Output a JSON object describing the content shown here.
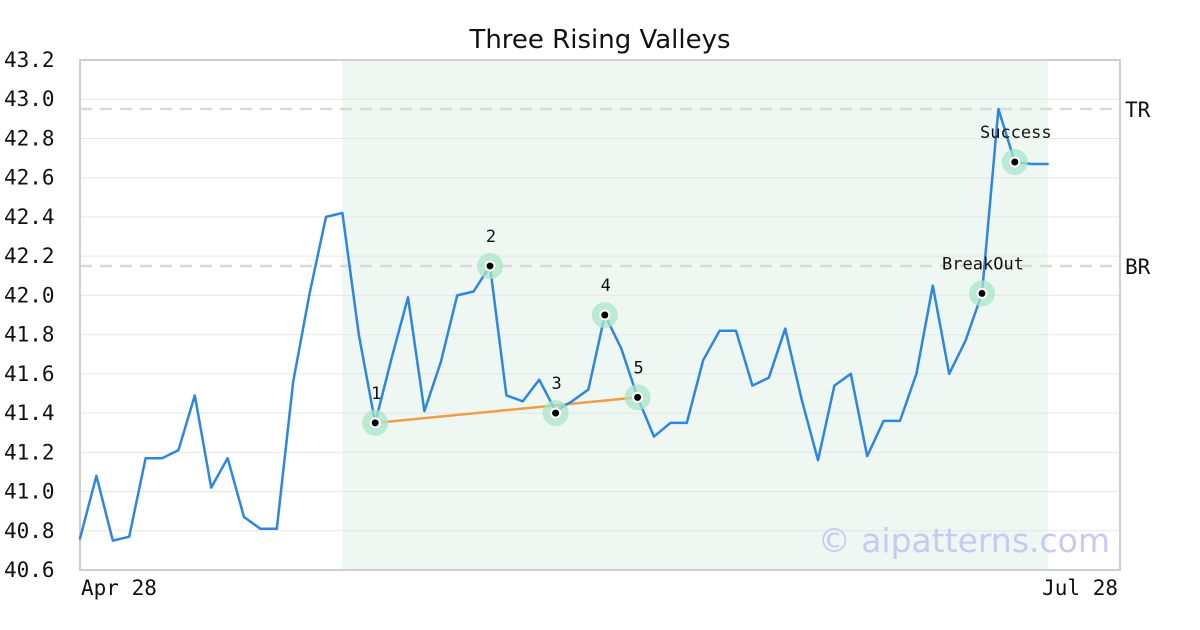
{
  "chart_data": {
    "type": "line",
    "title": "Three Rising Valleys",
    "xlabel": "",
    "ylabel": "",
    "x_tick_labels": [
      "Apr 28",
      "Jul 28"
    ],
    "ylim": [
      40.6,
      43.2
    ],
    "y_ticks": [
      "40.6",
      "40.8",
      "41.0",
      "41.2",
      "41.4",
      "41.6",
      "41.8",
      "42.0",
      "42.2",
      "42.4",
      "42.6",
      "42.8",
      "43.0",
      "43.2"
    ],
    "grid": true,
    "series": [
      {
        "color": "#2e86de",
        "values": [
          40.76,
          41.08,
          40.75,
          40.77,
          41.17,
          41.17,
          41.21,
          41.49,
          41.02,
          41.17,
          40.87,
          40.81,
          40.81,
          41.56,
          42.01,
          42.4,
          42.42,
          41.8,
          41.35,
          41.68,
          41.99,
          41.41,
          41.66,
          42.0,
          42.02,
          42.15,
          41.49,
          41.46,
          41.57,
          41.41,
          41.46,
          41.52,
          41.9,
          41.73,
          41.48,
          41.28,
          41.35,
          41.35,
          41.67,
          41.82,
          41.82,
          41.54,
          41.58,
          41.83,
          41.47,
          41.16,
          41.54,
          41.6,
          41.18,
          41.36,
          41.36,
          41.6,
          42.05,
          41.6,
          41.77,
          42.01,
          42.95,
          42.68,
          42.67,
          42.67
        ]
      }
    ],
    "pattern_region": {
      "start_index": 16,
      "end_index": 59,
      "color": "#eef7f2"
    },
    "reference_lines": [
      {
        "label": "TR",
        "value": 42.95
      },
      {
        "label": "BR",
        "value": 42.15
      }
    ],
    "trend_line": {
      "from_index": 18,
      "to_index": 34,
      "from_value": 41.35,
      "to_value": 41.48,
      "color": "#f39c45"
    },
    "marked_points": [
      {
        "label": "1",
        "index": 18,
        "value": 41.35,
        "label_pos": "above"
      },
      {
        "label": "2",
        "index": 25,
        "value": 42.15,
        "label_pos": "above"
      },
      {
        "label": "3",
        "index": 29,
        "value": 41.4,
        "label_pos": "above"
      },
      {
        "label": "4",
        "index": 32,
        "value": 41.9,
        "label_pos": "above"
      },
      {
        "label": "5",
        "index": 34,
        "value": 41.48,
        "label_pos": "above"
      },
      {
        "label": "BreakOut",
        "index": 55,
        "value": 42.01,
        "label_pos": "above"
      },
      {
        "label": "Success",
        "index": 57,
        "value": 42.68,
        "label_pos": "above"
      }
    ],
    "highlight_color": "#a8e6c9",
    "watermark": "© aipatterns.com"
  }
}
